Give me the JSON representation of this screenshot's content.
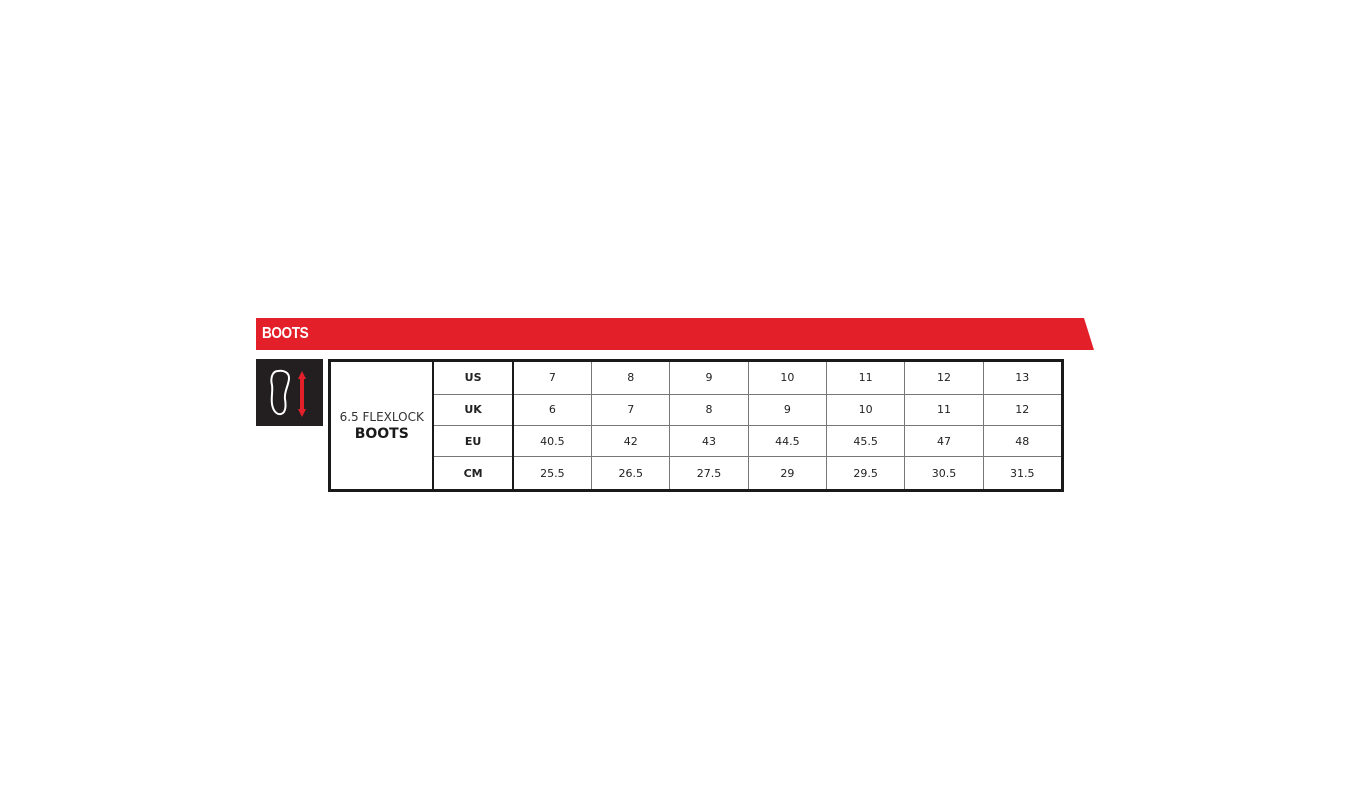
{
  "section_title": "BOOTS",
  "icon": "foot-length-icon",
  "colors": {
    "accent": "#e3202a",
    "icon_bg": "#231f20"
  },
  "product": {
    "line1": "6.5 FLEXLOCK",
    "line2": "BOOTS"
  },
  "rows": [
    {
      "label": "US",
      "values": [
        "7",
        "8",
        "9",
        "10",
        "11",
        "12",
        "13"
      ]
    },
    {
      "label": "UK",
      "values": [
        "6",
        "7",
        "8",
        "9",
        "10",
        "11",
        "12"
      ]
    },
    {
      "label": "EU",
      "values": [
        "40.5",
        "42",
        "43",
        "44.5",
        "45.5",
        "47",
        "48"
      ]
    },
    {
      "label": "CM",
      "values": [
        "25.5",
        "26.5",
        "27.5",
        "29",
        "29.5",
        "30.5",
        "31.5"
      ]
    }
  ]
}
